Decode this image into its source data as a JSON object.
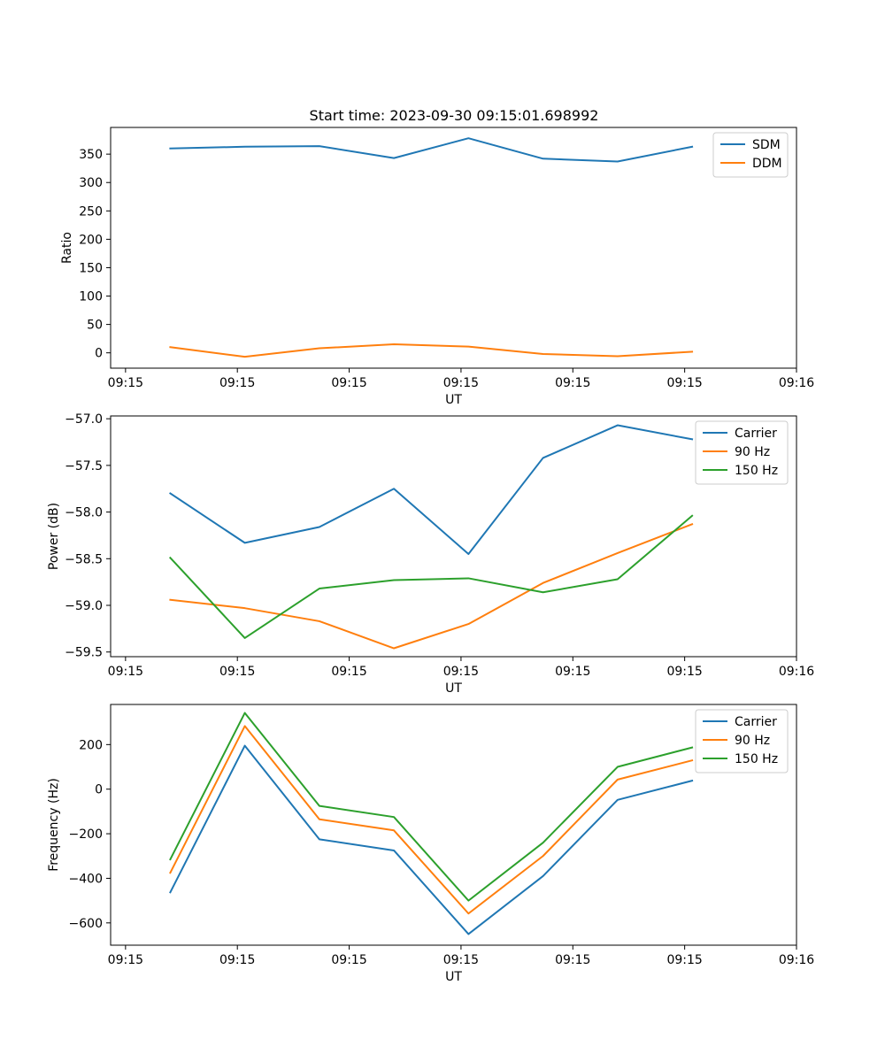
{
  "figure": {
    "title": "Start time: 2023-09-30 09:15:01.698992"
  },
  "chart_data": [
    {
      "type": "line",
      "title": "Start time: 2023-09-30 09:15:01.698992",
      "xlabel": "UT",
      "ylabel": "Ratio",
      "x": [
        1,
        2,
        3,
        4,
        5,
        6,
        7,
        8
      ],
      "xlim": [
        0.2,
        9.4
      ],
      "x_ticks": [
        {
          "value": 0.4,
          "label": "09:15"
        },
        {
          "value": 1.9,
          "label": "09:15"
        },
        {
          "value": 3.4,
          "label": "09:15"
        },
        {
          "value": 4.9,
          "label": "09:15"
        },
        {
          "value": 6.4,
          "label": "09:15"
        },
        {
          "value": 7.9,
          "label": "09:15"
        },
        {
          "value": 9.4,
          "label": "09:16"
        }
      ],
      "ylim": [
        -27,
        397
      ],
      "y_ticks": [
        0,
        50,
        100,
        150,
        200,
        250,
        300,
        350
      ],
      "legend_position": "top-right",
      "series": [
        {
          "name": "SDM",
          "color": "#1f77b4",
          "values": [
            360,
            363,
            364,
            343,
            378,
            342,
            337,
            363
          ]
        },
        {
          "name": "DDM",
          "color": "#ff7f0e",
          "values": [
            10,
            -7,
            8,
            15,
            11,
            -2,
            -6,
            2
          ]
        }
      ]
    },
    {
      "type": "line",
      "title": "",
      "xlabel": "UT",
      "ylabel": "Power (dB)",
      "x": [
        1,
        2,
        3,
        4,
        5,
        6,
        7,
        8
      ],
      "xlim": [
        0.2,
        9.4
      ],
      "x_ticks": [
        {
          "value": 0.4,
          "label": "09:15"
        },
        {
          "value": 1.9,
          "label": "09:15"
        },
        {
          "value": 3.4,
          "label": "09:15"
        },
        {
          "value": 4.9,
          "label": "09:15"
        },
        {
          "value": 6.4,
          "label": "09:15"
        },
        {
          "value": 7.9,
          "label": "09:15"
        },
        {
          "value": 9.4,
          "label": "09:16"
        }
      ],
      "ylim": [
        -59.55,
        -56.97
      ],
      "y_ticks": [
        -59.5,
        -59.0,
        -58.5,
        -58.0,
        -57.5,
        -57.0
      ],
      "legend_position": "top-right",
      "series": [
        {
          "name": "Carrier",
          "color": "#1f77b4",
          "values": [
            -57.8,
            -58.33,
            -58.16,
            -57.75,
            -58.45,
            -57.42,
            -57.07,
            -57.22
          ]
        },
        {
          "name": "90 Hz",
          "color": "#ff7f0e",
          "values": [
            -58.94,
            -59.03,
            -59.17,
            -59.46,
            -59.2,
            -58.76,
            -58.44,
            -58.13
          ]
        },
        {
          "name": "150 Hz",
          "color": "#2ca02c",
          "values": [
            -58.49,
            -59.35,
            -58.82,
            -58.73,
            -58.71,
            -58.86,
            -58.72,
            -58.04
          ]
        }
      ]
    },
    {
      "type": "line",
      "title": "",
      "xlabel": "UT",
      "ylabel": "Frequency (Hz)",
      "x": [
        1,
        2,
        3,
        4,
        5,
        6,
        7,
        8
      ],
      "xlim": [
        0.2,
        9.4
      ],
      "x_ticks": [
        {
          "value": 0.4,
          "label": "09:15"
        },
        {
          "value": 1.9,
          "label": "09:15"
        },
        {
          "value": 3.4,
          "label": "09:15"
        },
        {
          "value": 4.9,
          "label": "09:15"
        },
        {
          "value": 6.4,
          "label": "09:15"
        },
        {
          "value": 7.9,
          "label": "09:15"
        },
        {
          "value": 9.4,
          "label": "09:16"
        }
      ],
      "ylim": [
        -700,
        380
      ],
      "y_ticks": [
        -600,
        -400,
        -200,
        0,
        200
      ],
      "legend_position": "top-right",
      "series": [
        {
          "name": "Carrier",
          "color": "#1f77b4",
          "values": [
            -463,
            195,
            -225,
            -275,
            -650,
            -390,
            -48,
            38
          ]
        },
        {
          "name": "90 Hz",
          "color": "#ff7f0e",
          "values": [
            -375,
            283,
            -135,
            -185,
            -558,
            -300,
            43,
            129
          ]
        },
        {
          "name": "150 Hz",
          "color": "#2ca02c",
          "values": [
            -315,
            342,
            -75,
            -125,
            -500,
            -240,
            100,
            187
          ]
        }
      ]
    }
  ]
}
